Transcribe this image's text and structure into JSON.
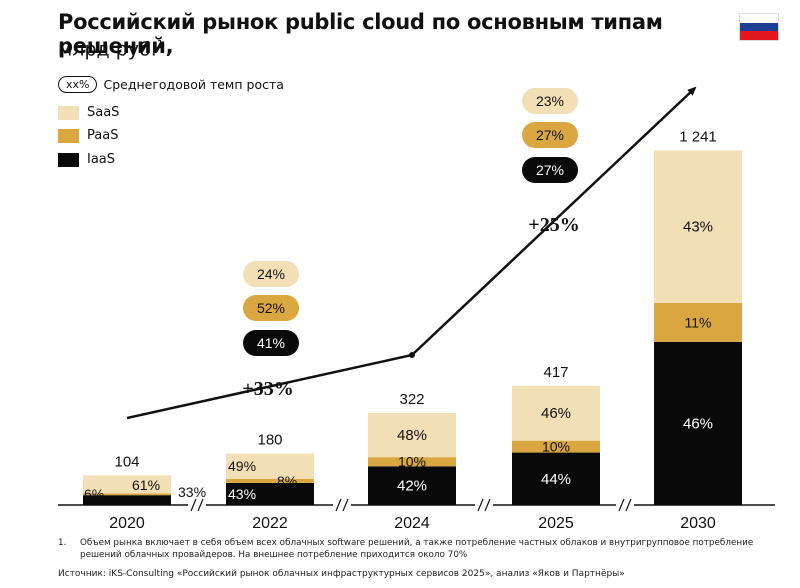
{
  "header": {
    "title": "Российский рынок public cloud по основным типам решений,",
    "subtitle": "млрд руб.",
    "subtitle_sup": "1"
  },
  "flag": {
    "name": "russia-flag-icon",
    "colors": [
      "#ffffff",
      "#1c3f94",
      "#e4181c"
    ]
  },
  "legend": {
    "growth_pill": "xx%",
    "growth_label": "Среднегодовой темп роста",
    "items": [
      {
        "label": "SaaS",
        "color": "#f3dfb6"
      },
      {
        "label": "PaaS",
        "color": "#d9a640"
      },
      {
        "label": "IaaS",
        "color": "#0a0a0a"
      }
    ]
  },
  "chart_data": {
    "type": "bar",
    "stacked": true,
    "title": "Российский рынок public cloud по основным типам решений, млрд руб.",
    "categories": [
      "2020",
      "2022",
      "2024",
      "2025",
      "2030"
    ],
    "totals": [
      104,
      180,
      322,
      417,
      1241
    ],
    "total_labels": [
      "104",
      "180",
      "322",
      "417",
      "1 241"
    ],
    "series": [
      {
        "name": "IaaS",
        "color": "#0a0a0a",
        "shares": [
          0.33,
          0.43,
          0.42,
          0.44,
          0.46
        ],
        "labels": [
          "33%",
          "43%",
          "42%",
          "44%",
          "46%"
        ]
      },
      {
        "name": "PaaS",
        "color": "#d9a640",
        "shares": [
          0.06,
          0.08,
          0.1,
          0.1,
          0.11
        ],
        "labels": [
          "6%",
          "8%",
          "10%",
          "10%",
          "11%"
        ]
      },
      {
        "name": "SaaS",
        "color": "#f3dfb6",
        "shares": [
          0.61,
          0.49,
          0.48,
          0.46,
          0.43
        ],
        "labels": [
          "61%",
          "49%",
          "48%",
          "46%",
          "43%"
        ]
      }
    ],
    "axis_breaks": [
      "//",
      "//",
      "//",
      "//"
    ],
    "cagr_periods": [
      {
        "label": "+33%",
        "period": "2020–2024",
        "saas": "24%",
        "paas": "52%",
        "iaas": "41%"
      },
      {
        "label": "+25%",
        "period": "2024–2030",
        "saas": "23%",
        "paas": "27%",
        "iaas": "27%"
      }
    ],
    "xlabel": "",
    "ylabel": "млрд руб."
  },
  "footnote": {
    "number": "1.",
    "text": "Объем рынка включает в себя объем всех облачных software решений, а также потребление частных облаков и внутригрупповое потребление решений облачных провайдеров. На внешнее потребление приходится около 70%"
  },
  "source": "Источник: iKS-Consulting «Российский рынок облачных инфраструктурных сервисов 2025», анализ «Яков и Партнёры»"
}
